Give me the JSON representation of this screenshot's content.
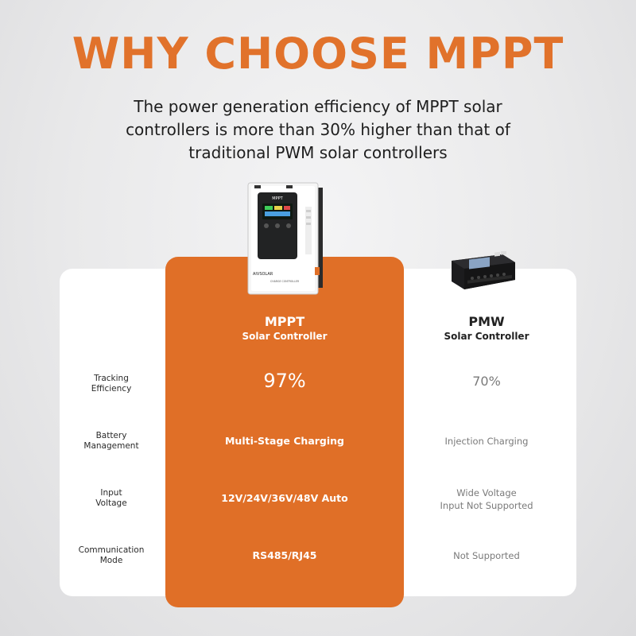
{
  "header": {
    "title": "WHY CHOOSE MPPT",
    "subtitle": "The power generation efficiency of MPPT solar controllers is more than 30% higher than that of traditional PWM solar controllers"
  },
  "colors": {
    "accent": "#e06f27",
    "title": "#e1722b",
    "card": "#ffffff"
  },
  "products": {
    "mppt_device": {
      "icon": "mppt-controller-device",
      "brand_label": "AIVSOLAR",
      "model_label": "CHARGE CONTROLLER"
    },
    "pwm_device": {
      "icon": "pwm-controller-device"
    }
  },
  "columns": {
    "mppt": {
      "name": "MPPT",
      "subtitle": "Solar Controller"
    },
    "pwm": {
      "name": "PMW",
      "subtitle": "Solar Controller"
    }
  },
  "rows": [
    {
      "label_line1": "Tracking",
      "label_line2": "Efficiency",
      "mppt": "97%",
      "pwm_line1": "70%",
      "pwm_line2": ""
    },
    {
      "label_line1": "Battery",
      "label_line2": "Management",
      "mppt": "Multi-Stage Charging",
      "pwm_line1": "Injection Charging",
      "pwm_line2": ""
    },
    {
      "label_line1": "Input",
      "label_line2": "Voltage",
      "mppt": "12V/24V/36V/48V Auto",
      "pwm_line1": "Wide Voltage",
      "pwm_line2": "Input Not Supported"
    },
    {
      "label_line1": "Communication",
      "label_line2": "Mode",
      "mppt": "RS485/RJ45",
      "pwm_line1": "Not Supported",
      "pwm_line2": ""
    }
  ]
}
